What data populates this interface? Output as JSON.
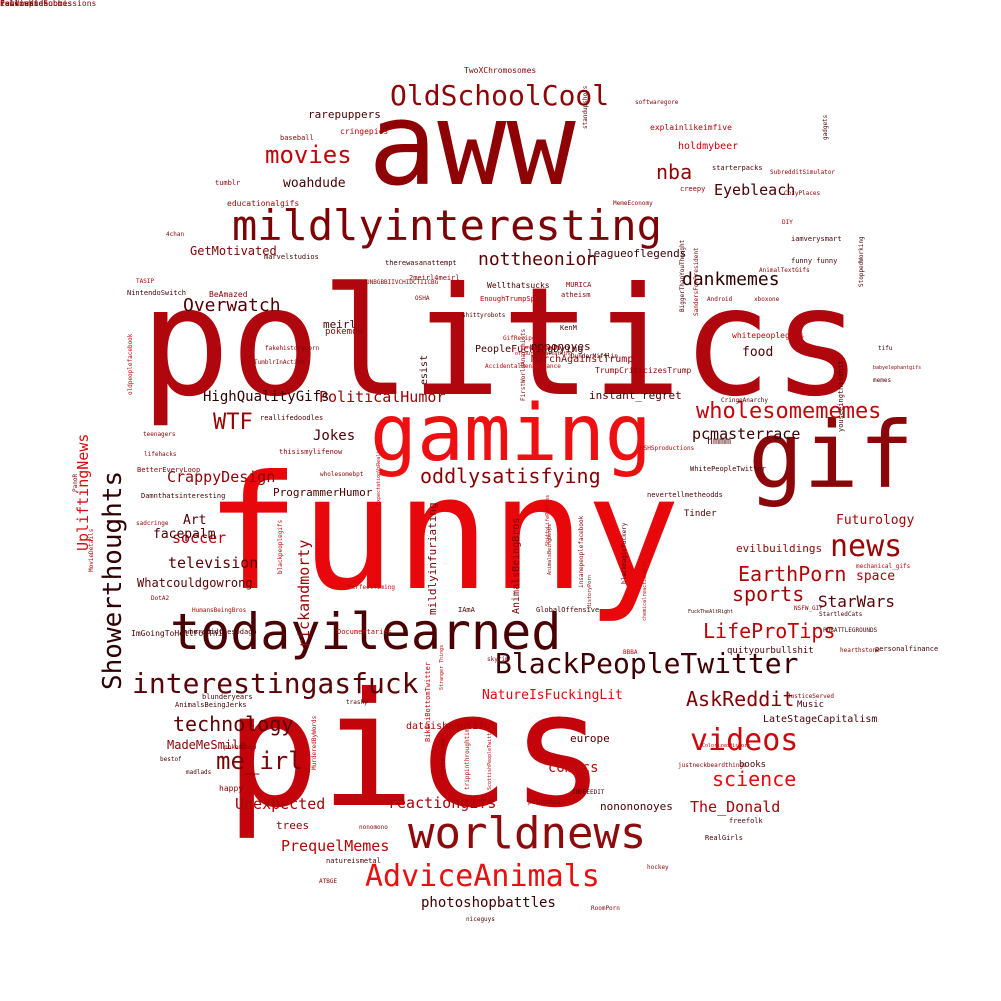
{
  "words": [
    {
      "text": "funny",
      "color": "#e8070a",
      "weight": 1.0
    },
    {
      "text": "pics",
      "color": "#c3040a",
      "weight": 0.95
    },
    {
      "text": "politics",
      "color": "#b0070e",
      "weight": 0.9
    },
    {
      "text": "aww",
      "color": "#8e0205",
      "weight": 0.85
    },
    {
      "text": "gaming",
      "color": "#ee0f12",
      "weight": 0.8
    },
    {
      "text": "gif",
      "color": "#8a0608",
      "weight": 0.75
    },
    {
      "text": "todayilearned",
      "color": "#4a0003",
      "weight": 0.7
    },
    {
      "text": "worldnews",
      "color": "#8e0a0c",
      "weight": 0.65
    },
    {
      "text": "mildlyinteresting",
      "color": "#7c0205",
      "weight": 0.6
    },
    {
      "text": "Showerthoughts",
      "color": "#2e0003",
      "weight": 0.55
    },
    {
      "text": "AdviceAnimals",
      "color": "#e8100f",
      "weight": 0.5
    },
    {
      "text": "BlackPeopleTwitter",
      "color": "#3c0004",
      "weight": 0.48
    },
    {
      "text": "interestingasfuck",
      "color": "#5a0205",
      "weight": 0.46
    },
    {
      "text": "videos",
      "color": "#c70a0d",
      "weight": 0.44
    },
    {
      "text": "OldSchoolCool",
      "color": "#8f0407",
      "weight": 0.42
    },
    {
      "text": "news",
      "color": "#9a0306",
      "weight": 0.4
    },
    {
      "text": "movies",
      "color": "#c20307",
      "weight": 0.38
    },
    {
      "text": "wholesomememes",
      "color": "#c2080b",
      "weight": 0.36
    },
    {
      "text": "LifeProTips",
      "color": "#bd0508",
      "weight": 0.34
    },
    {
      "text": "EarthPorn",
      "color": "#b30307",
      "weight": 0.33
    },
    {
      "text": "AskReddit",
      "color": "#7e0205",
      "weight": 0.32
    },
    {
      "text": "oddlysatisfying",
      "color": "#860306",
      "weight": 0.31
    },
    {
      "text": "dankmemes",
      "color": "#2e0002",
      "weight": 0.3
    },
    {
      "text": "nottheonion",
      "color": "#5a0003",
      "weight": 0.29
    },
    {
      "text": "technology",
      "color": "#5c0205",
      "weight": 0.28
    },
    {
      "text": "WTF",
      "color": "#9a0407",
      "weight": 0.27
    },
    {
      "text": "me_irl",
      "color": "#7a0306",
      "weight": 0.27
    },
    {
      "text": "Overwatch",
      "color": "#4e0003",
      "weight": 0.26
    },
    {
      "text": "sports",
      "color": "#a20407",
      "weight": 0.26
    },
    {
      "text": "science",
      "color": "#e80a0e",
      "weight": 0.25
    },
    {
      "text": "nba",
      "color": "#8f0306",
      "weight": 0.25
    },
    {
      "text": "Eyebleach",
      "color": "#4d0003",
      "weight": 0.22
    },
    {
      "text": "pcmasterrace",
      "color": "#3a0003",
      "weight": 0.21
    },
    {
      "text": "rickandmorty",
      "color": "#9a0407",
      "weight": 0.21
    },
    {
      "text": "reactiongifs",
      "color": "#a50509",
      "weight": 0.21
    },
    {
      "text": "comics",
      "color": "#c00b0e",
      "weight": 0.21
    },
    {
      "text": "StarWars",
      "color": "#5b0004",
      "weight": 0.21
    },
    {
      "text": "UpliftingNews",
      "color": "#d90c0f",
      "weight": 0.2
    },
    {
      "text": "PoliticalHumor",
      "color": "#960306",
      "weight": 0.2
    },
    {
      "text": "The_Donald",
      "color": "#a40306",
      "weight": 0.2
    },
    {
      "text": "television",
      "color": "#5a0205",
      "weight": 0.19
    },
    {
      "text": "CrappyDesign",
      "color": "#8d0306",
      "weight": 0.19
    },
    {
      "text": "Unexpected",
      "color": "#a80407",
      "weight": 0.19
    },
    {
      "text": "PrequelMemes",
      "color": "#b60407",
      "weight": 0.19
    },
    {
      "text": "photoshopbattles",
      "color": "#3e0003",
      "weight": 0.19
    },
    {
      "text": "HighQualityGifs",
      "color": "#2e0002",
      "weight": 0.18
    },
    {
      "text": "soccer",
      "color": "#b00509",
      "weight": 0.18
    },
    {
      "text": "Jokes",
      "color": "#4b0004",
      "weight": 0.18
    },
    {
      "text": "facepalm",
      "color": "#4a0003",
      "weight": 0.18
    },
    {
      "text": "Futurology",
      "color": "#a50508",
      "weight": 0.18
    },
    {
      "text": "space",
      "color": "#a40407",
      "weight": 0.18
    },
    {
      "text": "food",
      "color": "#4e0003",
      "weight": 0.17
    },
    {
      "text": "woahdude",
      "color": "#4a0003",
      "weight": 0.17
    },
    {
      "text": "GetMotivated",
      "color": "#7b0205",
      "weight": 0.16
    },
    {
      "text": "Art",
      "color": "#4e0003",
      "weight": 0.16
    },
    {
      "text": "NatureIsFuckingLit",
      "color": "#e0080c",
      "weight": 0.16
    },
    {
      "text": "evilbuildings",
      "color": "#8a0306",
      "weight": 0.15
    },
    {
      "text": "Whatcouldgowrong",
      "color": "#5c0004",
      "weight": 0.15
    },
    {
      "text": "MadeMeSmile",
      "color": "#8a0306",
      "weight": 0.15
    },
    {
      "text": "mildlyinfuriating",
      "color": "#7a0306",
      "weight": 0.15
    },
    {
      "text": "instant_regret",
      "color": "#4a0003",
      "weight": 0.14
    },
    {
      "text": "leagueoflegends",
      "color": "#3a0003",
      "weight": 0.14
    },
    {
      "text": "nononoyes",
      "color": "#4a0003",
      "weight": 0.14
    },
    {
      "text": "rarepuppers",
      "color": "#4a0003",
      "weight": 0.14
    },
    {
      "text": "ProgrammerHumor",
      "color": "#4a0003",
      "weight": 0.13
    },
    {
      "text": "meirl",
      "color": "#4a0003",
      "weight": 0.13
    },
    {
      "text": "europe",
      "color": "#4a0003",
      "weight": 0.13
    },
    {
      "text": "trees",
      "color": "#8a0306",
      "weight": 0.13
    },
    {
      "text": "hmmm",
      "color": "#4a0003",
      "weight": 0.13
    },
    {
      "text": "esist",
      "color": "#4a0003",
      "weight": 0.13
    },
    {
      "text": "AnimalsBeingBros",
      "color": "#7a0306",
      "weight": 0.12
    },
    {
      "text": "MarchAgainstTrump",
      "color": "#9a0407",
      "weight": 0.12
    },
    {
      "text": "nonononoyes",
      "color": "#4a0003",
      "weight": 0.12
    },
    {
      "text": "dataisbeautiful",
      "color": "#a50508",
      "weight": 0.12
    },
    {
      "text": "holdmybeer",
      "color": "#c20407",
      "weight": 0.12
    },
    {
      "text": "Tinder",
      "color": "#4a0003",
      "weight": 0.12
    },
    {
      "text": "books",
      "color": "#4a0003",
      "weight": 0.11
    },
    {
      "text": "PeopleFuckingDying",
      "color": "#4a0003",
      "weight": 0.11
    },
    {
      "text": "pokemon",
      "color": "#8a0306",
      "weight": 0.11
    },
    {
      "text": "Music",
      "color": "#4a0003",
      "weight": 0.11
    },
    {
      "text": "LateStageCapitalism",
      "color": "#4a0003",
      "weight": 0.11
    },
    {
      "text": "quityourbullshit",
      "color": "#4a0003",
      "weight": 0.11
    },
    {
      "text": "TwoXChromosomes",
      "color": "#8a0306",
      "weight": 0.11
    },
    {
      "text": "explainlikeimfive",
      "color": "#b60407",
      "weight": 0.1
    },
    {
      "text": "cringepics",
      "color": "#c20407",
      "weight": 0.1
    },
    {
      "text": "baseball",
      "color": "#8a0306",
      "weight": 0.1
    },
    {
      "text": "tumblr",
      "color": "#8a0306",
      "weight": 0.1
    },
    {
      "text": "educationalgifs",
      "color": "#a50508",
      "weight": 0.1
    },
    {
      "text": "starterpacks",
      "color": "#4a0003",
      "weight": 0.1
    },
    {
      "text": "creepy",
      "color": "#8a0306",
      "weight": 0.1
    },
    {
      "text": "MemeEconomy",
      "color": "#8a0306",
      "weight": 0.1
    },
    {
      "text": "marvelstudios",
      "color": "#4a0003",
      "weight": 0.1
    },
    {
      "text": "therewasanattempt",
      "color": "#4a0003",
      "weight": 0.1
    },
    {
      "text": "2meirl4meirl",
      "color": "#8a0306",
      "weight": 0.1
    },
    {
      "text": "BeAmazed",
      "color": "#8a0306",
      "weight": 0.1
    },
    {
      "text": "NintendoSwitch",
      "color": "#4a0003",
      "weight": 0.1
    },
    {
      "text": "Wellthatsucks",
      "color": "#4a0003",
      "weight": 0.1
    },
    {
      "text": "atheism",
      "color": "#8a0306",
      "weight": 0.1
    },
    {
      "text": "EnoughTrumpSpam",
      "color": "#b60407",
      "weight": 0.1
    },
    {
      "text": "KenM",
      "color": "#4a0003",
      "weight": 0.1
    },
    {
      "text": "whitepeoplegifs",
      "color": "#c20407",
      "weight": 0.1
    },
    {
      "text": "iamverysmart",
      "color": "#4a0003",
      "weight": 0.1
    },
    {
      "text": "funny funny",
      "color": "#4a0003",
      "weight": 0.1
    },
    {
      "text": "reallifedoodles",
      "color": "#4a0003",
      "weight": 0.1
    },
    {
      "text": "thisismylifenow",
      "color": "#8a0306",
      "weight": 0.1
    },
    {
      "text": "BetterEveryLoop",
      "color": "#8a0306",
      "weight": 0.1
    },
    {
      "text": "Damnthatsinteresting",
      "color": "#4a0003",
      "weight": 0.1
    },
    {
      "text": "nevertellmetheodds",
      "color": "#4a0003",
      "weight": 0.1
    },
    {
      "text": "WhitePeopleTwitter",
      "color": "#4a0003",
      "weight": 0.1
    },
    {
      "text": "IAmA",
      "color": "#4a0003",
      "weight": 0.1
    },
    {
      "text": "GlobalOffensive",
      "color": "#4a0003",
      "weight": 0.09
    },
    {
      "text": "Documentaries",
      "color": "#c20407",
      "weight": 0.09
    },
    {
      "text": "wheredidthesodago",
      "color": "#4a0003",
      "weight": 0.09
    },
    {
      "text": "ImGoingToHellForThis",
      "color": "#4a0003",
      "weight": 0.09
    },
    {
      "text": "blunderyears",
      "color": "#4a0003",
      "weight": 0.09
    },
    {
      "text": "AnimalsBeingJerks",
      "color": "#4a0003",
      "weight": 0.09
    },
    {
      "text": "trashy",
      "color": "#4a0003",
      "weight": 0.09
    },
    {
      "text": "DotA2",
      "color": "#8a0306",
      "weight": 0.08
    },
    {
      "text": "HumansBeingBros",
      "color": "#b60407",
      "weight": 0.08
    },
    {
      "text": "MovieDetails",
      "color": "#a50508",
      "weight": 0.08
    },
    {
      "text": "bestof",
      "color": "#4a0003",
      "weight": 0.08
    },
    {
      "text": "madlads",
      "color": "#4a0003",
      "weight": 0.08
    },
    {
      "text": "happy",
      "color": "#8a0306",
      "weight": 0.08
    },
    {
      "text": "BikiniBottomTwitter",
      "color": "#c20407",
      "weight": 0.09
    },
    {
      "text": "RealGirls",
      "color": "#4a0003",
      "weight": 0.09
    },
    {
      "text": "freefolk",
      "color": "#4a0003",
      "weight": 0.09
    },
    {
      "text": "natureismetal",
      "color": "#4a0003",
      "weight": 0.09
    },
    {
      "text": "hockey",
      "color": "#8a0306",
      "weight": 0.08
    },
    {
      "text": "JusticeServed",
      "color": "#8a0306",
      "weight": 0.08
    },
    {
      "text": "StartledCats",
      "color": "#4a0003",
      "weight": 0.08
    },
    {
      "text": "PUBATTLEGROUNDS",
      "color": "#4a0003",
      "weight": 0.08
    },
    {
      "text": "personalfinance",
      "color": "#4a0003",
      "weight": 0.08
    },
    {
      "text": "DIY",
      "color": "#c20407",
      "weight": 0.08
    },
    {
      "text": "softwaregore",
      "color": "#8a0306",
      "weight": 0.07
    },
    {
      "text": "gadgets",
      "color": "#4a0003",
      "weight": 0.07
    },
    {
      "text": "tifu",
      "color": "#4a0003",
      "weight": 0.07
    },
    {
      "text": "memes",
      "color": "#4a0003",
      "weight": 0.07
    },
    {
      "text": "shittyrobots",
      "color": "#4a0003",
      "weight": 0.07
    },
    {
      "text": "Android",
      "color": "#8a0306",
      "weight": 0.07
    },
    {
      "text": "xboxone",
      "color": "#8a0306",
      "weight": 0.07
    },
    {
      "text": "AnimalTextGifs",
      "color": "#8a0306",
      "weight": 0.07
    },
    {
      "text": "CozyPlaces",
      "color": "#8a0306",
      "weight": 0.07
    },
    {
      "text": "SubredditSimulator",
      "color": "#8a0306",
      "weight": 0.07
    },
    {
      "text": "MURICA",
      "color": "#8a0306",
      "weight": 0.07
    },
    {
      "text": "TrumpCriticizesTrump",
      "color": "#8a0306",
      "weight": 0.07
    },
    {
      "text": "DunderMifflin",
      "color": "#4a0003",
      "weight": 0.09
    },
    {
      "text": "4chan",
      "color": "#8a0306",
      "weight": 0.08
    },
    {
      "text": "TASIP",
      "color": "#c20407",
      "weight": 0.07
    },
    {
      "text": "fakehistoryporn",
      "color": "#8a0306",
      "weight": 0.07
    },
    {
      "text": "nonomono",
      "color": "#8a0306",
      "weight": 0.06
    },
    {
      "text": "RoomPorn",
      "color": "#8a0306",
      "weight": 0.06
    },
    {
      "text": "ATBGE",
      "color": "#8a0306",
      "weight": 0.06
    },
    {
      "text": "niceguys",
      "color": "#4a0003",
      "weight": 0.06
    },
    {
      "text": "teenagers",
      "color": "#8a0306",
      "weight": 0.06
    },
    {
      "text": "sadcringe",
      "color": "#8a0306",
      "weight": 0.06
    },
    {
      "text": "AccidentalRenaissance",
      "color": "#c20407",
      "weight": 0.06
    },
    {
      "text": "wholesomebpt",
      "color": "#8a0306",
      "weight": 0.07
    },
    {
      "text": "pokemongo",
      "color": "#8a0306",
      "weight": 0.06
    },
    {
      "text": "pointmnba",
      "color": "#8a0306",
      "weight": 0.06
    },
    {
      "text": "INEEEEDIT",
      "color": "#4a0003",
      "weight": 0.06
    },
    {
      "text": "justneckbeardthings",
      "color": "#8a0306",
      "weight": 0.06
    },
    {
      "text": "ColorizedHistory",
      "color": "#c20407",
      "weight": 0.06
    },
    {
      "text": "hearthstone",
      "color": "#8a0306",
      "weight": 0.06
    },
    {
      "text": "NSFW_GIF",
      "color": "#8a0306",
      "weight": 0.06
    },
    {
      "text": "BBBA",
      "color": "#c20407",
      "weight": 0.06
    },
    {
      "text": "skyrim",
      "color": "#8a0306",
      "weight": 0.06
    },
    {
      "text": "mechanical_gifs",
      "color": "#c20407",
      "weight": 0.06
    },
    {
      "text": "FuckTheAltRight",
      "color": "#4a0003",
      "weight": 0.06
    },
    {
      "text": "HSHSproductions",
      "color": "#c20407",
      "weight": 0.06
    },
    {
      "text": "CringeAnarchy",
      "color": "#4a0003",
      "weight": 0.06
    },
    {
      "text": "babyelephantgifs",
      "color": "#8a0306",
      "weight": 0.06
    },
    {
      "text": "UNBGBBIIVCHIDCTIICBG",
      "color": "#8a0306",
      "weight": 0.07
    },
    {
      "text": "OSHA",
      "color": "#8a0306",
      "weight": 0.06
    },
    {
      "text": "GifRecipes",
      "color": "#c20407",
      "weight": 0.06
    },
    {
      "text": "PanoR",
      "color": "#8a0306",
      "weight": 0.06
    },
    {
      "text": "TumblrInAction",
      "color": "#8a0306",
      "weight": 0.06
    },
    {
      "text": "lifehacks",
      "color": "#8a0306",
      "weight": 0.06
    },
    {
      "text": "FirstWorldAnarchists",
      "color": "#8a0306",
      "weight": 0.06
    },
    {
      "text": "SandersForPresident",
      "color": "#8a0306",
      "weight": 0.06
    },
    {
      "text": "BiggerThanYouThought",
      "color": "#4a0003",
      "weight": 0.06
    },
    {
      "text": "StoppedWorking",
      "color": "#4a0003",
      "weight": 0.07
    },
    {
      "text": "youseeingthisshit",
      "color": "#4a0003",
      "weight": 0.07
    },
    {
      "text": "blackmagicfuckery",
      "color": "#4a0003",
      "weight": 0.07
    },
    {
      "text": "insanepeoplefacebook",
      "color": "#8a0306",
      "weight": 0.07
    },
    {
      "text": "blackpeoplegifs",
      "color": "#c20407",
      "weight": 0.08
    },
    {
      "text": "oldpeoplefacebook",
      "color": "#c20407",
      "weight": 0.07
    },
    {
      "text": "PerfectTiming",
      "color": "#c20407",
      "weight": 0.07
    },
    {
      "text": "trippinthroughtime",
      "color": "#c20407",
      "weight": 0.07
    },
    {
      "text": "MurderedByWords",
      "color": "#c20407",
      "weight": 0.07
    },
    {
      "text": "standupshots",
      "color": "#4a0003",
      "weight": 0.07
    },
    {
      "text": "ScottishPeopleTwitter",
      "color": "#c20407",
      "weight": 0.07
    },
    {
      "text": "HistoryPorn",
      "color": "#8a0306",
      "weight": 0.06
    },
    {
      "text": "AnimalsBeingDerps",
      "color": "#8a0306",
      "weight": 0.06
    },
    {
      "text": "ExpectationVsReality",
      "color": "#c20407",
      "weight": 0.06
    },
    {
      "text": "chemicalreactiongifs",
      "color": "#c20407",
      "weight": 0.06
    },
    {
      "text": "confusinggifs",
      "color": "#c20407",
      "weight": 0.06
    },
    {
      "text": "ShittyLifeProTips",
      "color": "#c20407",
      "weight": 0.06
    },
    {
      "text": "Stranger Things",
      "color": "#c20407",
      "weight": 0.06
    },
    {
      "text": "catsstandingup",
      "color": "#8a0306",
      "weight": 0.06
    },
    {
      "text": "ofcoursethatsathing",
      "color": "#8a0306",
      "weight": 0.06
    },
    {
      "text": "PewdiepieSubmissions",
      "color": "#8a0306",
      "weight": 0.06
    },
    {
      "text": "calvinandhobbes",
      "color": "#8a0306",
      "weight": 0.06
    },
    {
      "text": "FellowKids",
      "color": "#8a0306",
      "weight": 0.06
    },
    {
      "text": "iamsmart",
      "color": "#8a0306",
      "weight": 0.06
    }
  ]
}
